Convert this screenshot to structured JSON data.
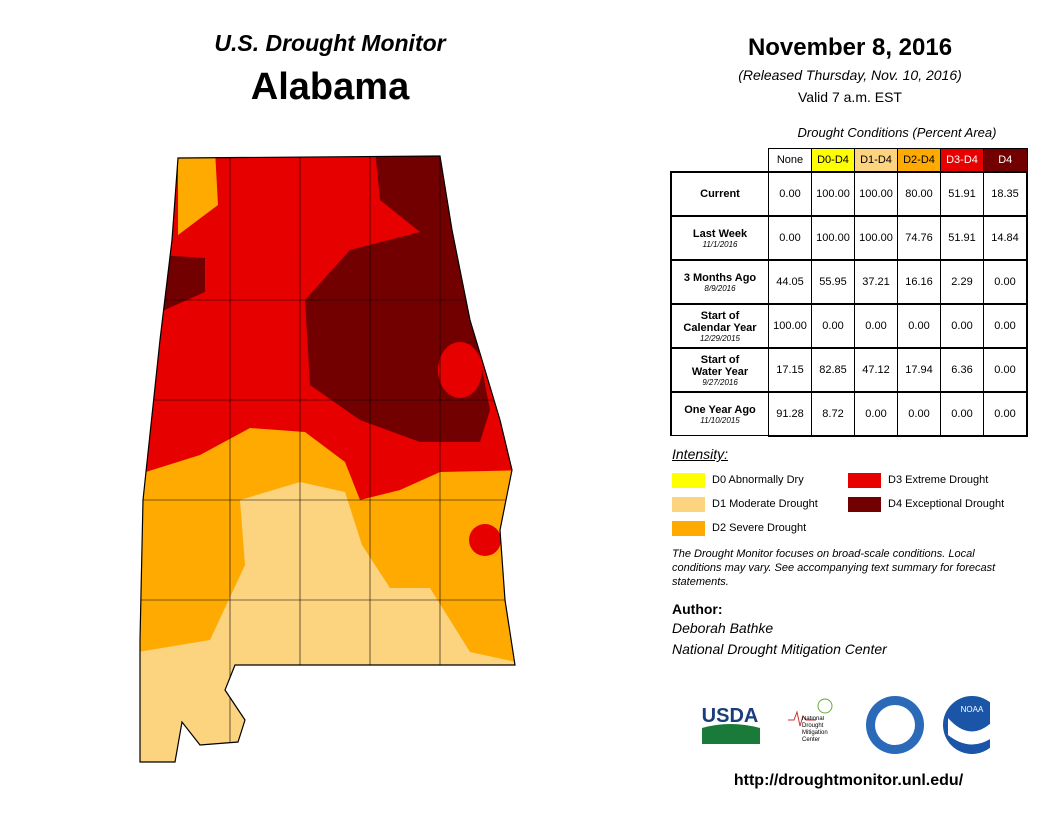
{
  "header": {
    "program": "U.S. Drought Monitor",
    "state": "Alabama",
    "date": "November 8, 2016",
    "released": "(Released Thursday, Nov. 10, 2016)",
    "valid": "Valid 7 a.m. EST"
  },
  "table": {
    "caption": "Drought Conditions (Percent Area)",
    "columns": [
      {
        "label": "None",
        "color": "#ffffff"
      },
      {
        "label": "D0-D4",
        "color": "#ffff00"
      },
      {
        "label": "D1-D4",
        "color": "#fcd37f"
      },
      {
        "label": "D2-D4",
        "color": "#ffaa00"
      },
      {
        "label": "D3-D4",
        "color": "#e60000"
      },
      {
        "label": "D4",
        "color": "#730000"
      }
    ],
    "rows": [
      {
        "label": [
          "Current"
        ],
        "values": [
          "0.00",
          "100.00",
          "100.00",
          "80.00",
          "51.91",
          "18.35"
        ]
      },
      {
        "label": [
          "Last Week"
        ],
        "date": "11/1/2016",
        "values": [
          "0.00",
          "100.00",
          "100.00",
          "74.76",
          "51.91",
          "14.84"
        ]
      },
      {
        "label": [
          "3 Months Ago"
        ],
        "date": "8/9/2016",
        "values": [
          "44.05",
          "55.95",
          "37.21",
          "16.16",
          "2.29",
          "0.00"
        ]
      },
      {
        "label": [
          "Start of",
          "Calendar Year"
        ],
        "date": "12/29/2015",
        "values": [
          "100.00",
          "0.00",
          "0.00",
          "0.00",
          "0.00",
          "0.00"
        ]
      },
      {
        "label": [
          "Start of",
          "Water Year"
        ],
        "date": "9/27/2016",
        "values": [
          "17.15",
          "82.85",
          "47.12",
          "17.94",
          "6.36",
          "0.00"
        ]
      },
      {
        "label": [
          "One Year Ago"
        ],
        "date": "11/10/2015",
        "values": [
          "91.28",
          "8.72",
          "0.00",
          "0.00",
          "0.00",
          "0.00"
        ]
      }
    ]
  },
  "legend": {
    "title": "Intensity:",
    "items": [
      {
        "label": "D0 Abnormally Dry",
        "color": "#ffff00"
      },
      {
        "label": "D1 Moderate Drought",
        "color": "#fcd37f"
      },
      {
        "label": "D2 Severe Drought",
        "color": "#ffaa00"
      },
      {
        "label": "D3 Extreme Drought",
        "color": "#e60000"
      },
      {
        "label": "D4 Exceptional Drought",
        "color": "#730000"
      }
    ]
  },
  "note": "The Drought Monitor focuses on broad-scale conditions. Local conditions may vary. See accompanying text summary for forecast statements.",
  "author": {
    "heading": "Author:",
    "name": "Deborah Bathke",
    "org": "National Drought Mitigation Center"
  },
  "logos": {
    "usda": "USDA",
    "ndmc": "National Drought Mitigation Center",
    "noaa": "NOAA"
  },
  "url": "http://droughtmonitor.unl.edu/"
}
